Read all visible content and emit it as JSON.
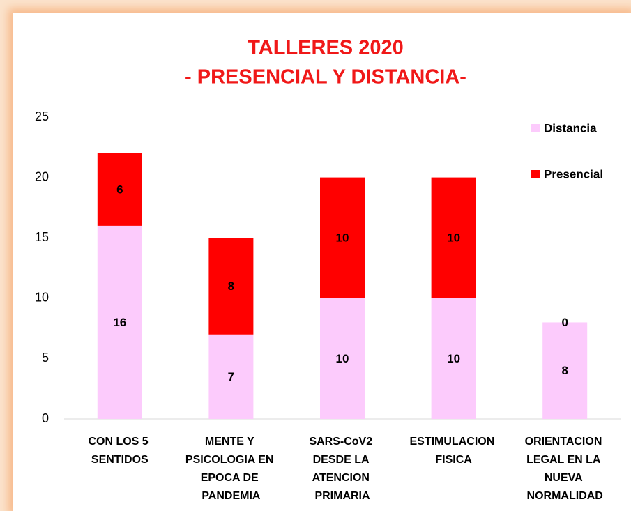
{
  "chart_data": {
    "type": "stacked_bar",
    "title": [
      "TALLERES 2020",
      "- PRESENCIAL Y DISTANCIA-"
    ],
    "categories": [
      "CON LOS 5 SENTIDOS",
      "MENTE Y PSICOLOGIA EN EPOCA DE PANDEMIA",
      "SARS-CoV2 DESDE LA ATENCION PRIMARIA",
      "ESTIMULACION FISICA",
      "ORIENTACION LEGAL EN LA NUEVA NORMALIDAD"
    ],
    "series": [
      {
        "name": "Distancia",
        "color": "#fccbfc",
        "values": [
          16,
          7,
          10,
          10,
          8
        ]
      },
      {
        "name": "Presencial",
        "color": "#ff0000",
        "values": [
          6,
          8,
          10,
          10,
          0
        ]
      }
    ],
    "ylim": [
      0,
      25
    ],
    "yticks": [
      0,
      5,
      10,
      15,
      20,
      25
    ],
    "grid": false,
    "legend": "top-right"
  }
}
